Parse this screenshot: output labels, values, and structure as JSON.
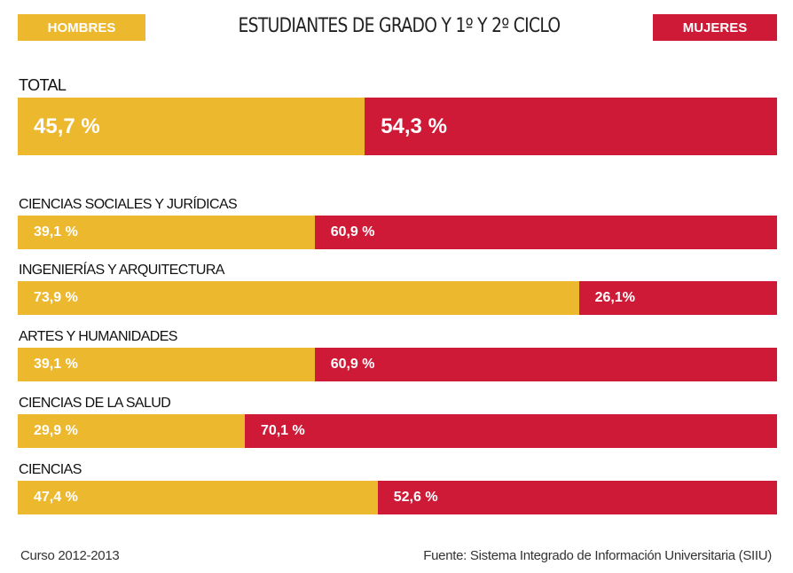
{
  "legend": {
    "men": "HOMBRES",
    "women": "MUJERES"
  },
  "colors": {
    "men": "#ecb82e",
    "women": "#cf1a37"
  },
  "chart_data": {
    "type": "bar",
    "stacked": "100%",
    "orientation": "horizontal",
    "title": "ESTUDIANTES DE GRADO Y 1º Y 2º CICLO",
    "legend_placement": "top",
    "series": [
      {
        "name": "HOMBRES",
        "values": [
          45.7,
          39.1,
          73.9,
          39.1,
          29.9,
          47.4
        ],
        "labels": [
          "45,7 %",
          "39,1 %",
          "73,9 %",
          "39,1 %",
          "29,9 %",
          "47,4 %"
        ]
      },
      {
        "name": "MUJERES",
        "values": [
          54.3,
          60.9,
          26.1,
          60.9,
          70.1,
          52.6
        ],
        "labels": [
          "54,3 %",
          "60,9 %",
          "26,1%",
          "60,9 %",
          "70,1 %",
          "52,6 %"
        ]
      }
    ],
    "categories": [
      "TOTAL",
      "CIENCIAS SOCIALES Y JURÍDICAS",
      "INGENIERÍAS Y ARQUITECTURA",
      "ARTES Y HUMANIDADES",
      "CIENCIAS DE LA SALUD",
      "CIENCIAS"
    ]
  },
  "footer": {
    "course": "Curso 2012-2013",
    "source": "Fuente: Sistema Integrado de Información Universitaria (SIIU)"
  }
}
